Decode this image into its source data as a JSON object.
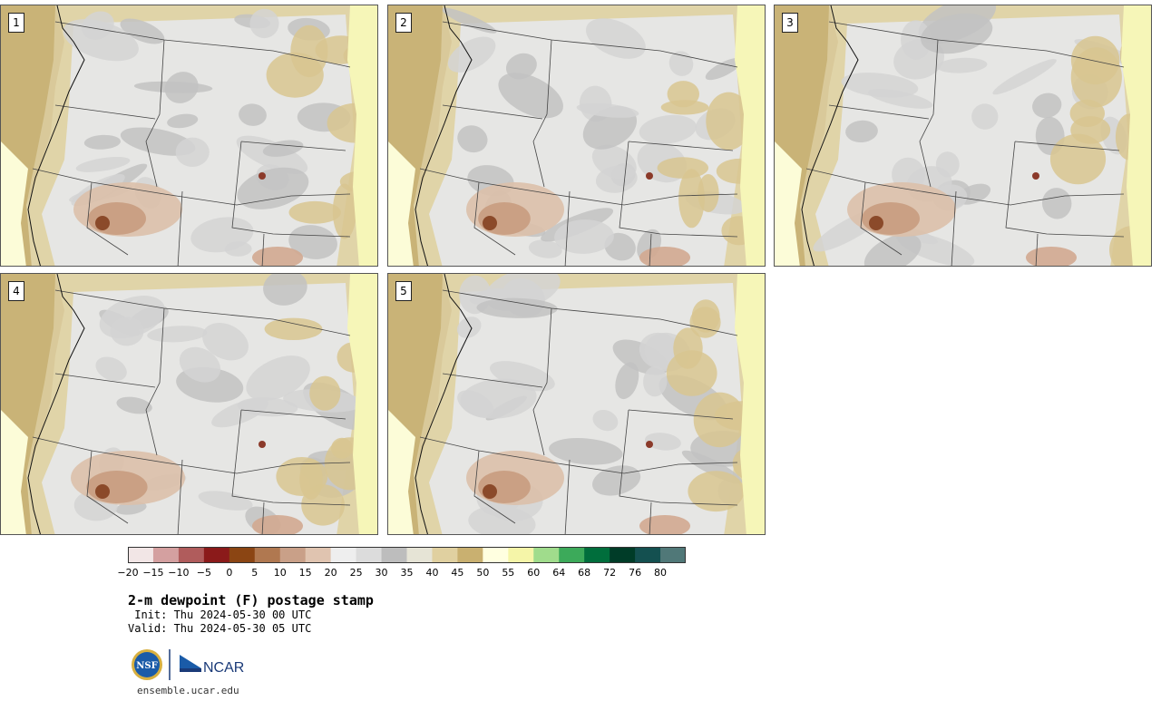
{
  "panels": [
    {
      "number": "1"
    },
    {
      "number": "2"
    },
    {
      "number": "3"
    },
    {
      "number": "4"
    },
    {
      "number": "5"
    }
  ],
  "colorbar": {
    "colors": [
      "#f2e6e6",
      "#d4a0a0",
      "#b05c5c",
      "#8b1a1a",
      "#8b4513",
      "#b07850",
      "#c9a088",
      "#e0c4b0",
      "#eeeeee",
      "#dcdcdc",
      "#bdbdbd",
      "#e6e4d6",
      "#e0d0a0",
      "#c9b070",
      "#ffffe0",
      "#f5f5a8",
      "#a0dc8c",
      "#3caa5a",
      "#006e3c",
      "#003c28",
      "#145050",
      "#507878"
    ],
    "labels": [
      "−20",
      "−15",
      "−10",
      "−5",
      "0",
      "5",
      "10",
      "15",
      "20",
      "25",
      "30",
      "35",
      "40",
      "45",
      "50",
      "55",
      "60",
      "64",
      "68",
      "72",
      "76",
      "80"
    ]
  },
  "title": "2-m dewpoint (F) postage stamp",
  "init": " Init: Thu 2024-05-30 00 UTC",
  "valid": "Valid: Thu 2024-05-30 05 UTC",
  "logos": {
    "nsf": "NSF",
    "ncar": "NCAR"
  },
  "site": "ensemble.ucar.edu"
}
